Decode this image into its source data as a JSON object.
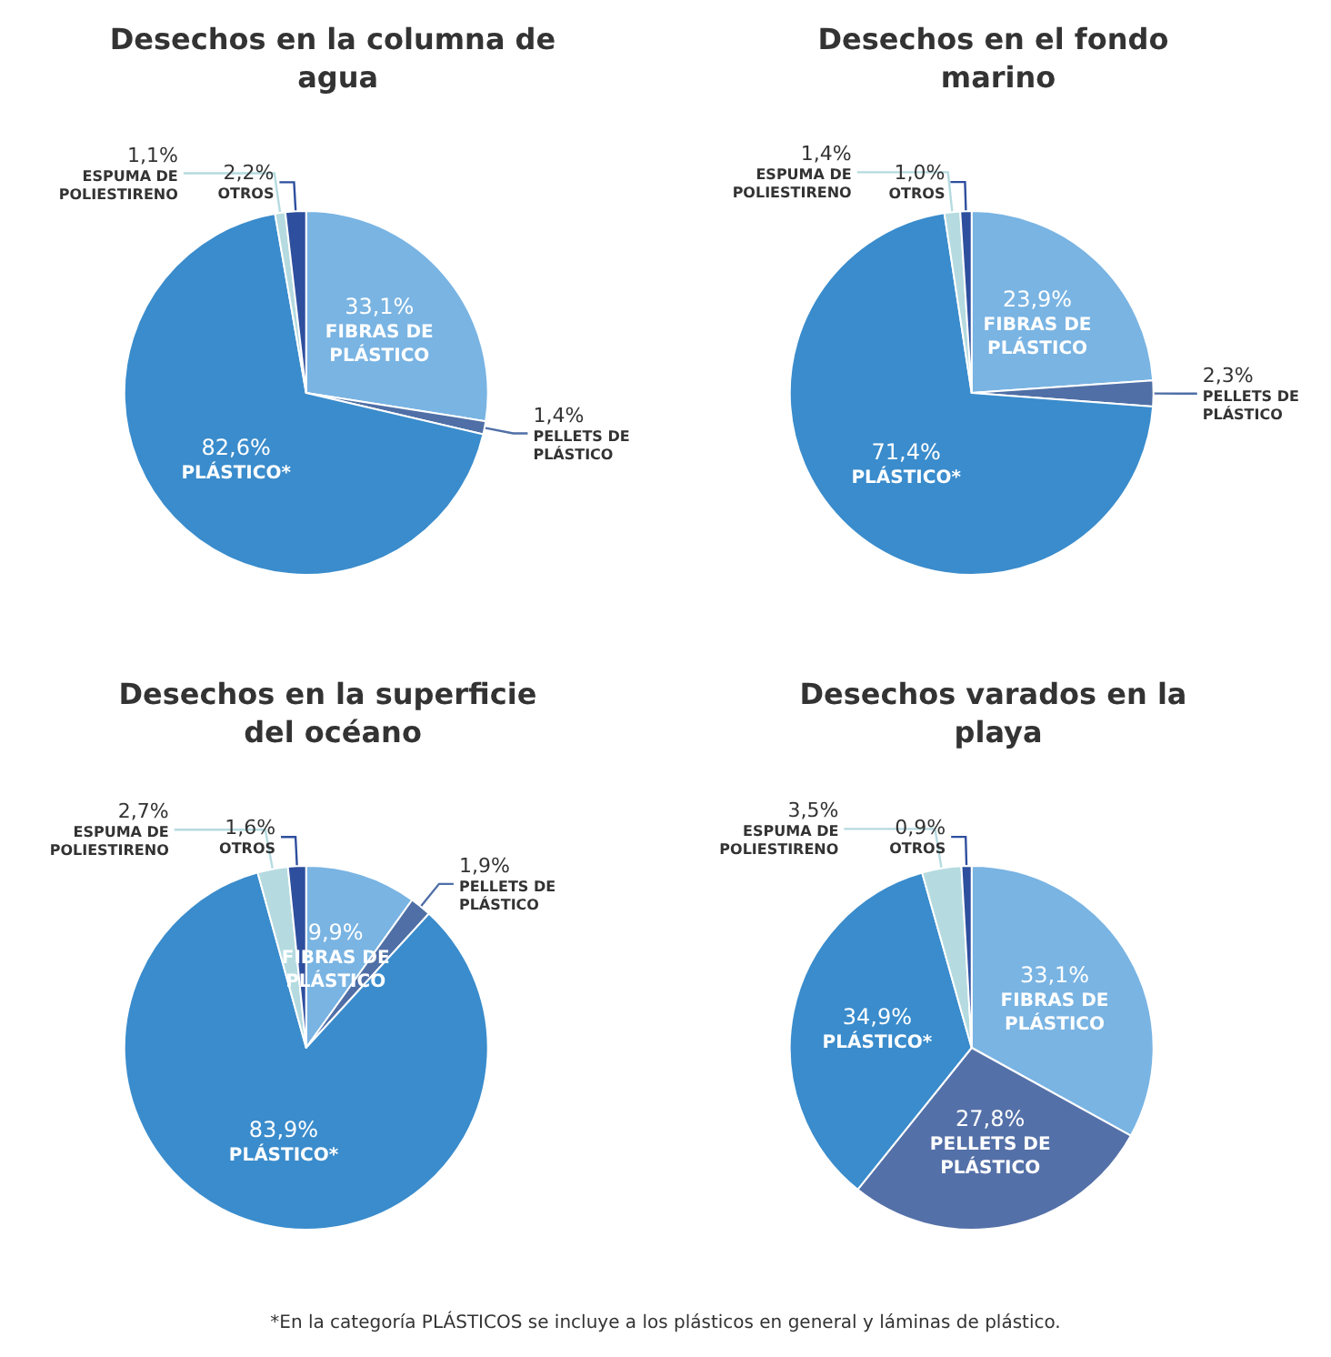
{
  "chart_data": [
    {
      "type": "pie",
      "title": "Desechos en la columna de agua",
      "categories": [
        "FIBRAS DE PLÁSTICO",
        "PELLETS DE PLÁSTICO",
        "PLÁSTICO*",
        "ESPUMA DE POLIESTIRENO",
        "OTROS"
      ],
      "values": [
        33.1,
        1.4,
        82.6,
        1.1,
        2.2
      ],
      "value_labels": [
        "33,1%",
        "1,4%",
        "82,6%",
        "1,1%",
        "2,2%"
      ],
      "colors": [
        "#79b4e3",
        "#4f6fa6",
        "#3a8ccc",
        "#b5dbe0",
        "#2e4f9e"
      ]
    },
    {
      "type": "pie",
      "title": "Desechos en el fondo marino",
      "categories": [
        "FIBRAS DE PLÁSTICO",
        "PELLETS DE PLÁSTICO",
        "PLÁSTICO*",
        "ESPUMA DE POLIESTIRENO",
        "OTROS"
      ],
      "values": [
        23.9,
        2.3,
        71.4,
        1.4,
        1.0
      ],
      "value_labels": [
        "23,9%",
        "2,3%",
        "71,4%",
        "1,4%",
        "1,0%"
      ],
      "colors": [
        "#79b4e3",
        "#4f6fa6",
        "#3a8ccc",
        "#b5dbe0",
        "#2e4f9e"
      ]
    },
    {
      "type": "pie",
      "title": "Desechos en la superficie del océano",
      "categories": [
        "FIBRAS DE PLÁSTICO",
        "PELLETS DE PLÁSTICO",
        "PLÁSTICO*",
        "ESPUMA DE POLIESTIRENO",
        "OTROS"
      ],
      "values": [
        9.9,
        1.9,
        83.9,
        2.7,
        1.6
      ],
      "value_labels": [
        "9,9%",
        "1,9%",
        "83,9%",
        "2,7%",
        "1,6%"
      ],
      "colors": [
        "#79b4e3",
        "#4f6fa6",
        "#3a8ccc",
        "#b5dbe0",
        "#2e4f9e"
      ]
    },
    {
      "type": "pie",
      "title": "Desechos varados en la playa",
      "categories": [
        "FIBRAS DE PLÁSTICO",
        "PELLETS DE PLÁSTICO",
        "PLÁSTICO*",
        "ESPUMA DE POLIESTIRENO",
        "OTROS"
      ],
      "values": [
        33.1,
        27.8,
        34.9,
        3.5,
        0.9
      ],
      "value_labels": [
        "33,1%",
        "27,8%",
        "34,9%",
        "3,5%",
        "0,9%"
      ],
      "colors": [
        "#79b4e3",
        "#5470a8",
        "#3a8ccc",
        "#b5dbe0",
        "#2e4f9e"
      ],
      "annotations": [
        "*En la categoría PLÁSTICOS se incluye a los plásticos en general y láminas de plástico."
      ]
    }
  ]
}
